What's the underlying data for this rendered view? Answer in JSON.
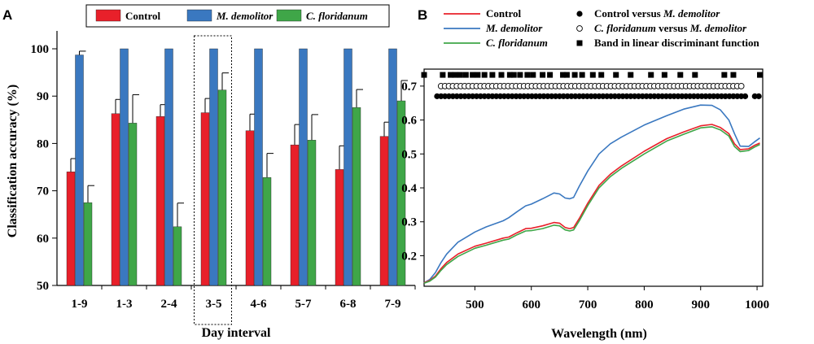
{
  "chart_data": [
    {
      "panel_label": "A",
      "type": "bar",
      "xlabel": "Day interval",
      "ylabel": "Classification accuracy (%)",
      "ylim": [
        50,
        100
      ],
      "yticks": [
        "50",
        "60",
        "70",
        "80",
        "90",
        "100"
      ],
      "categories": [
        "1-9",
        "1-3",
        "2-4",
        "3-5",
        "4-6",
        "5-7",
        "6-8",
        "7-9"
      ],
      "highlighted_category": "3-5",
      "legend_position": "top",
      "series": [
        {
          "name": "Control",
          "italic": false,
          "color": "#e8202a",
          "values": [
            74,
            86.3,
            85.7,
            86.5,
            82.7,
            79.7,
            74.5,
            81.5
          ],
          "errors": [
            2.8,
            3.0,
            2.5,
            3.0,
            3.5,
            4.3,
            5.0,
            3.0
          ]
        },
        {
          "name": "M. demolitor",
          "italic": true,
          "color": "#3a78c0",
          "values": [
            98.7,
            100,
            100,
            100,
            100,
            100,
            100,
            100
          ],
          "errors": [
            0.8,
            0,
            0,
            0,
            0,
            0,
            0,
            0
          ]
        },
        {
          "name": "C. floridanum",
          "italic": true,
          "color": "#3fa648",
          "values": [
            67.5,
            84.3,
            62.4,
            91.3,
            72.8,
            80.7,
            87.6,
            89.0
          ],
          "errors": [
            3.6,
            6.0,
            5.0,
            3.6,
            5.1,
            5.4,
            3.8,
            4.3
          ]
        }
      ]
    },
    {
      "panel_label": "B",
      "type": "line",
      "xlabel": "Wavelength (nm)",
      "ylabel": "",
      "xlim": [
        410,
        1010
      ],
      "ylim": [
        0.11,
        0.75
      ],
      "xticks": [
        "500",
        "600",
        "700",
        "800",
        "900",
        "1000"
      ],
      "yticks": [
        "0.2",
        "0.3",
        "0.4",
        "0.5",
        "0.6",
        "0.7"
      ],
      "legend_position": "top",
      "series": [
        {
          "name": "Control",
          "italic": false,
          "color": "#e8202a",
          "x": [
            410,
            420,
            430,
            440,
            450,
            470,
            500,
            520,
            550,
            560,
            575,
            590,
            600,
            620,
            640,
            650,
            660,
            668,
            675,
            685,
            700,
            720,
            740,
            760,
            800,
            840,
            870,
            900,
            920,
            935,
            950,
            960,
            970,
            985,
            995,
            1005
          ],
          "y": [
            0.12,
            0.127,
            0.14,
            0.162,
            0.18,
            0.205,
            0.228,
            0.237,
            0.252,
            0.255,
            0.268,
            0.28,
            0.281,
            0.288,
            0.298,
            0.296,
            0.283,
            0.28,
            0.283,
            0.31,
            0.355,
            0.407,
            0.44,
            0.465,
            0.508,
            0.545,
            0.565,
            0.583,
            0.587,
            0.578,
            0.56,
            0.53,
            0.513,
            0.515,
            0.525,
            0.532
          ]
        },
        {
          "name": "M. demolitor",
          "italic": true,
          "color": "#3a78c0",
          "x": [
            410,
            420,
            430,
            440,
            450,
            470,
            500,
            520,
            550,
            560,
            575,
            590,
            600,
            620,
            640,
            650,
            660,
            668,
            675,
            685,
            700,
            720,
            740,
            760,
            800,
            840,
            870,
            900,
            920,
            935,
            950,
            960,
            970,
            985,
            995,
            1005
          ],
          "y": [
            0.12,
            0.13,
            0.15,
            0.18,
            0.205,
            0.24,
            0.27,
            0.285,
            0.303,
            0.312,
            0.33,
            0.347,
            0.352,
            0.368,
            0.385,
            0.382,
            0.37,
            0.368,
            0.372,
            0.405,
            0.45,
            0.5,
            0.53,
            0.55,
            0.585,
            0.613,
            0.632,
            0.644,
            0.643,
            0.63,
            0.6,
            0.56,
            0.523,
            0.522,
            0.535,
            0.547
          ]
        },
        {
          "name": "C. floridanum",
          "italic": true,
          "color": "#3fa648",
          "x": [
            410,
            420,
            430,
            440,
            450,
            470,
            500,
            520,
            550,
            560,
            575,
            590,
            600,
            620,
            640,
            650,
            660,
            668,
            675,
            685,
            700,
            720,
            740,
            760,
            800,
            840,
            870,
            900,
            920,
            935,
            950,
            960,
            970,
            985,
            995,
            1005
          ],
          "y": [
            0.119,
            0.125,
            0.137,
            0.157,
            0.174,
            0.198,
            0.222,
            0.231,
            0.246,
            0.249,
            0.262,
            0.273,
            0.274,
            0.28,
            0.29,
            0.288,
            0.276,
            0.273,
            0.276,
            0.303,
            0.348,
            0.4,
            0.433,
            0.458,
            0.5,
            0.538,
            0.558,
            0.577,
            0.58,
            0.571,
            0.553,
            0.522,
            0.507,
            0.51,
            0.52,
            0.528
          ]
        }
      ],
      "marker_rows": [
        {
          "name": "Band in linear discriminant function",
          "marker": "filled-square",
          "y": 0.733,
          "x": [
            410,
            443,
            457,
            465,
            474,
            484,
            496,
            505,
            517,
            531,
            547,
            562,
            569,
            580,
            593,
            603,
            620,
            633,
            656,
            663,
            677,
            690,
            709,
            724,
            750,
            776,
            812,
            836,
            864,
            890,
            942,
            958,
            1005
          ]
        },
        {
          "name": "C. floridanum versus M. demolitor",
          "marker": "open-circle",
          "y": 0.7,
          "x_start": 440,
          "x_end": 977,
          "x_step": 7
        },
        {
          "name": "Control versus M. demolitor",
          "marker": "filled-circle",
          "y": 0.67,
          "x_start": 433,
          "x_end": 985,
          "x_step": 7,
          "extra_x": [
            996,
            1003
          ]
        }
      ],
      "legend_right": [
        {
          "marker": "filled-circle",
          "parts": [
            {
              "text": "Control versus ",
              "italic": false
            },
            {
              "text": "M. demolitor",
              "italic": true
            }
          ]
        },
        {
          "marker": "open-circle",
          "parts": [
            {
              "text": "C. floridanum",
              "italic": true
            },
            {
              "text": " versus ",
              "italic": false
            },
            {
              "text": "M. demolitor",
              "italic": true
            }
          ]
        },
        {
          "marker": "filled-square",
          "parts": [
            {
              "text": "Band in linear discriminant function",
              "italic": false
            }
          ]
        }
      ]
    }
  ]
}
